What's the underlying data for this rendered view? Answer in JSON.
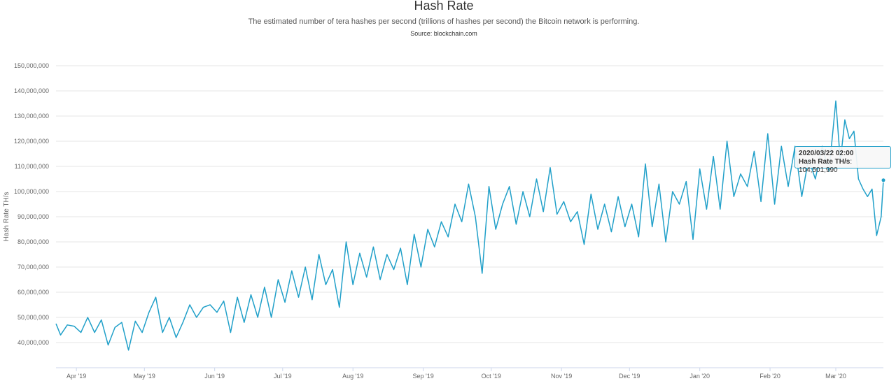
{
  "header": {
    "title": "Hash Rate",
    "subtitle": "The estimated number of tera hashes per second (trillions of hashes per second) the Bitcoin network is performing.",
    "source": "Source: blockchain.com"
  },
  "tooltip": {
    "date": "2020/03/22 02:00",
    "series": "Hash Rate TH/s",
    "value": "104,501,990"
  },
  "colors": {
    "line": "#21a0c9",
    "grid": "#e6e6e6",
    "axis": "#ccd6eb"
  },
  "chart_data": {
    "type": "line",
    "title": "Hash Rate",
    "ylabel": "Hash Rate TH/s",
    "xlabel": "",
    "ylim": [
      30000000,
      150000000
    ],
    "yticks": [
      40000000,
      50000000,
      60000000,
      70000000,
      80000000,
      90000000,
      100000000,
      110000000,
      120000000,
      130000000,
      140000000,
      150000000
    ],
    "ytick_labels": [
      "40,000,000",
      "50,000,000",
      "60,000,000",
      "70,000,000",
      "80,000,000",
      "90,000,000",
      "100,000,000",
      "110,000,000",
      "120,000,000",
      "130,000,000",
      "140,000,000",
      "150,000,000"
    ],
    "xlim": [
      "2019-03-23",
      "2020-03-22"
    ],
    "xticks": [
      "2019-04-01",
      "2019-05-01",
      "2019-06-01",
      "2019-07-01",
      "2019-08-01",
      "2019-09-01",
      "2019-10-01",
      "2019-11-01",
      "2019-12-01",
      "2020-01-01",
      "2020-02-01",
      "2020-03-01"
    ],
    "xtick_labels": [
      "Apr '19",
      "May '19",
      "Jun '19",
      "Jul '19",
      "Aug '19",
      "Sep '19",
      "Oct '19",
      "Nov '19",
      "Dec '19",
      "Jan '20",
      "Feb '20",
      "Mar '20"
    ],
    "grid": true,
    "legend": "none",
    "series": [
      {
        "x": [
          "2019-03-23",
          "2019-03-25",
          "2019-03-28",
          "2019-03-31",
          "2019-04-03",
          "2019-04-06",
          "2019-04-09",
          "2019-04-12",
          "2019-04-15",
          "2019-04-18",
          "2019-04-21",
          "2019-04-24",
          "2019-04-27",
          "2019-04-30",
          "2019-05-03",
          "2019-05-06",
          "2019-05-09",
          "2019-05-12",
          "2019-05-15",
          "2019-05-18",
          "2019-05-21",
          "2019-05-24",
          "2019-05-27",
          "2019-05-30",
          "2019-06-02",
          "2019-06-05",
          "2019-06-08",
          "2019-06-11",
          "2019-06-14",
          "2019-06-17",
          "2019-06-20",
          "2019-06-23",
          "2019-06-26",
          "2019-06-29",
          "2019-07-02",
          "2019-07-05",
          "2019-07-08",
          "2019-07-11",
          "2019-07-14",
          "2019-07-17",
          "2019-07-20",
          "2019-07-23",
          "2019-07-26",
          "2019-07-29",
          "2019-08-01",
          "2019-08-04",
          "2019-08-07",
          "2019-08-10",
          "2019-08-13",
          "2019-08-16",
          "2019-08-19",
          "2019-08-22",
          "2019-08-25",
          "2019-08-28",
          "2019-08-31",
          "2019-09-03",
          "2019-09-06",
          "2019-09-09",
          "2019-09-12",
          "2019-09-15",
          "2019-09-18",
          "2019-09-21",
          "2019-09-24",
          "2019-09-27",
          "2019-09-30",
          "2019-10-03",
          "2019-10-06",
          "2019-10-09",
          "2019-10-12",
          "2019-10-15",
          "2019-10-18",
          "2019-10-21",
          "2019-10-24",
          "2019-10-27",
          "2019-10-30",
          "2019-11-02",
          "2019-11-05",
          "2019-11-08",
          "2019-11-11",
          "2019-11-14",
          "2019-11-17",
          "2019-11-20",
          "2019-11-23",
          "2019-11-26",
          "2019-11-29",
          "2019-12-02",
          "2019-12-05",
          "2019-12-08",
          "2019-12-11",
          "2019-12-14",
          "2019-12-17",
          "2019-12-20",
          "2019-12-23",
          "2019-12-26",
          "2019-12-29",
          "2020-01-01",
          "2020-01-04",
          "2020-01-07",
          "2020-01-10",
          "2020-01-13",
          "2020-01-16",
          "2020-01-19",
          "2020-01-22",
          "2020-01-25",
          "2020-01-28",
          "2020-01-31",
          "2020-02-03",
          "2020-02-06",
          "2020-02-09",
          "2020-02-12",
          "2020-02-15",
          "2020-02-18",
          "2020-02-21",
          "2020-02-24",
          "2020-02-27",
          "2020-03-01",
          "2020-03-03",
          "2020-03-05",
          "2020-03-07",
          "2020-03-09",
          "2020-03-11",
          "2020-03-13",
          "2020-03-15",
          "2020-03-17",
          "2020-03-19",
          "2020-03-21",
          "2020-03-22"
        ],
        "y": [
          47500000,
          43000000,
          47000000,
          46500000,
          44000000,
          50000000,
          44000000,
          49000000,
          39000000,
          46000000,
          48000000,
          37000000,
          48500000,
          44000000,
          52000000,
          58000000,
          44000000,
          50000000,
          42000000,
          48000000,
          55000000,
          50000000,
          54000000,
          55000000,
          52000000,
          56500000,
          44000000,
          58000000,
          48000000,
          59000000,
          50000000,
          62000000,
          50000000,
          65000000,
          56000000,
          68500000,
          58000000,
          70000000,
          57000000,
          75000000,
          63000000,
          69000000,
          54000000,
          80000000,
          63000000,
          75500000,
          66000000,
          78000000,
          65000000,
          75000000,
          69000000,
          77500000,
          63000000,
          83000000,
          70000000,
          85000000,
          78000000,
          88000000,
          82000000,
          95000000,
          88000000,
          103000000,
          90000000,
          67500000,
          102000000,
          85000000,
          95000000,
          102000000,
          87000000,
          100000000,
          90000000,
          105000000,
          92000000,
          109500000,
          91000000,
          96000000,
          88000000,
          92000000,
          79000000,
          99000000,
          85000000,
          95000000,
          84000000,
          98000000,
          86000000,
          95000000,
          82000000,
          111000000,
          86000000,
          103000000,
          80000000,
          100000000,
          95000000,
          104000000,
          81000000,
          109000000,
          93000000,
          114000000,
          93000000,
          120000000,
          98000000,
          107000000,
          102000000,
          116000000,
          96000000,
          123000000,
          95000000,
          118000000,
          102000000,
          118000000,
          98000000,
          113000000,
          105000000,
          118000000,
          108000000,
          136000000,
          112000000,
          128500000,
          121000000,
          124000000,
          105000000,
          101000000,
          98000000,
          101000000,
          82500000,
          90000000,
          104500000
        ]
      }
    ]
  }
}
